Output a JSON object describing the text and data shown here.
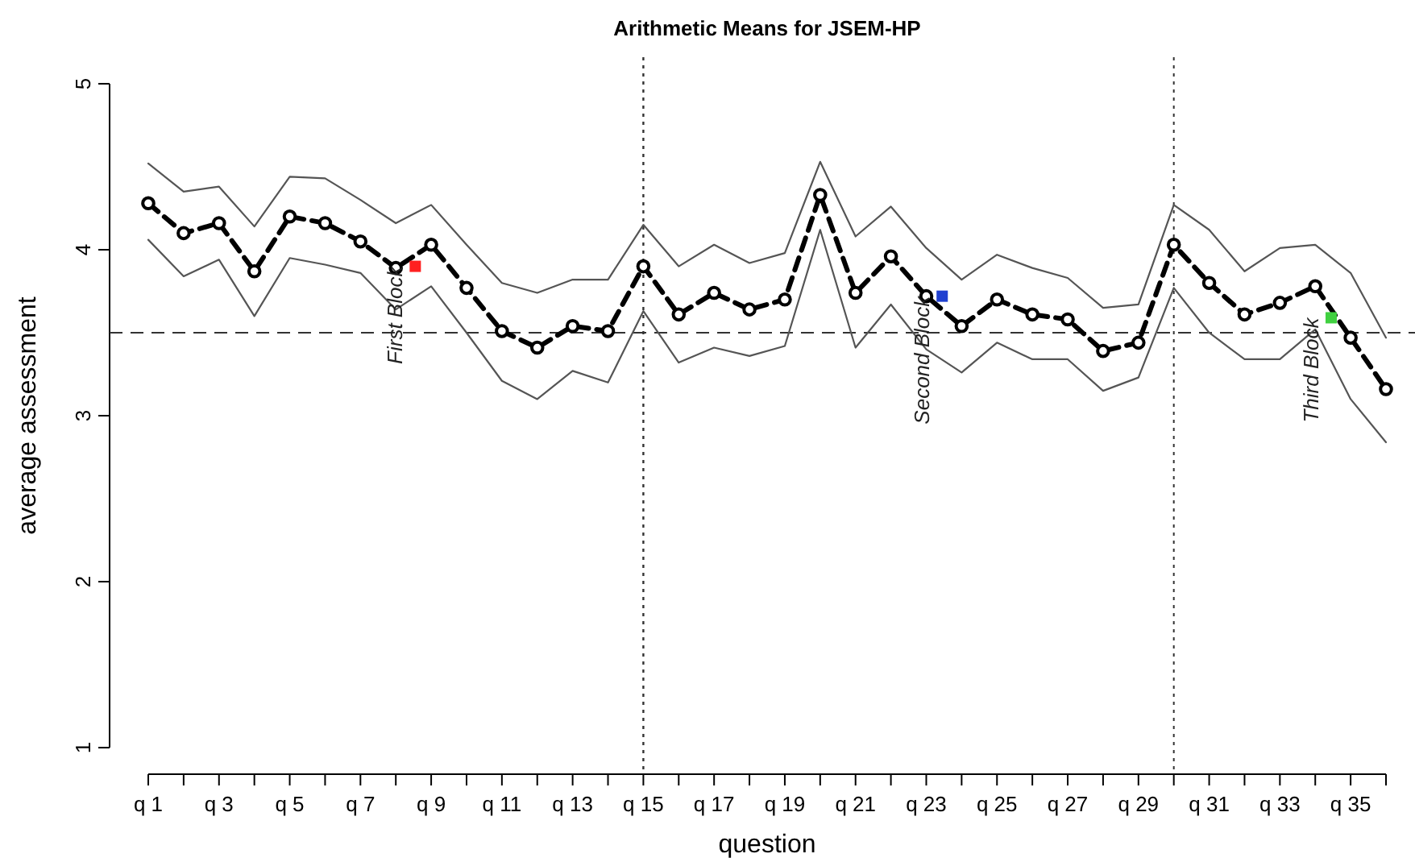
{
  "chart_data": {
    "type": "line",
    "title": "Arithmetic Means for JSEM-HP",
    "xlabel": "question",
    "ylabel": "average assessment",
    "categories": [
      "q 1",
      null,
      "q 3",
      null,
      "q 5",
      null,
      "q 7",
      null,
      "q 9",
      null,
      "q 11",
      null,
      "q 13",
      null,
      "q 15",
      null,
      "q 17",
      null,
      "q 19",
      null,
      "q 21",
      null,
      "q 23",
      null,
      "q 25",
      null,
      "q 27",
      null,
      "q 29",
      null,
      "q 31",
      null,
      "q 33",
      null,
      "q 35",
      null
    ],
    "series": [
      {
        "color": "#000000",
        "marker": "circle",
        "line_style": "dashed",
        "values": [
          4.28,
          4.1,
          4.16,
          3.87,
          4.2,
          4.16,
          4.05,
          3.89,
          4.03,
          3.77,
          3.51,
          3.41,
          3.54,
          3.51,
          3.9,
          3.61,
          3.74,
          3.64,
          3.7,
          4.33,
          3.74,
          3.96,
          3.72,
          3.54,
          3.7,
          3.61,
          3.58,
          3.39,
          3.44,
          4.03,
          3.8,
          3.61,
          3.68,
          3.78,
          3.47,
          3.16
        ]
      },
      {
        "color": "#555555",
        "marker": "none",
        "line_style": "solid",
        "values": [
          4.52,
          4.35,
          4.38,
          4.14,
          4.44,
          4.43,
          4.3,
          4.16,
          4.27,
          4.03,
          3.8,
          3.74,
          3.82,
          3.82,
          4.15,
          3.9,
          4.03,
          3.92,
          3.98,
          4.53,
          4.08,
          4.26,
          4.01,
          3.82,
          3.97,
          3.89,
          3.83,
          3.65,
          3.67,
          4.27,
          4.12,
          3.87,
          4.01,
          4.03,
          3.86,
          3.47
        ]
      },
      {
        "color": "#555555",
        "marker": "none",
        "line_style": "solid",
        "values": [
          4.06,
          3.84,
          3.94,
          3.6,
          3.95,
          3.91,
          3.86,
          3.64,
          3.78,
          3.5,
          3.21,
          3.1,
          3.27,
          3.2,
          3.63,
          3.32,
          3.41,
          3.36,
          3.42,
          4.12,
          3.41,
          3.67,
          3.4,
          3.26,
          3.44,
          3.34,
          3.34,
          3.15,
          3.23,
          3.77,
          3.5,
          3.34,
          3.34,
          3.52,
          3.1,
          2.84
        ]
      }
    ],
    "ylim": [
      0.84,
      5.16
    ],
    "yticks": [
      1,
      2,
      3,
      4,
      5
    ],
    "ref_lines": [
      {
        "axis": "y",
        "value": 3.5,
        "line_style": "dashed"
      },
      {
        "axis": "x",
        "value": "q 15",
        "line_style": "dotted"
      }
    ],
    "annotations": [
      "First Block",
      "Second Block",
      "Third Block"
    ]
  }
}
